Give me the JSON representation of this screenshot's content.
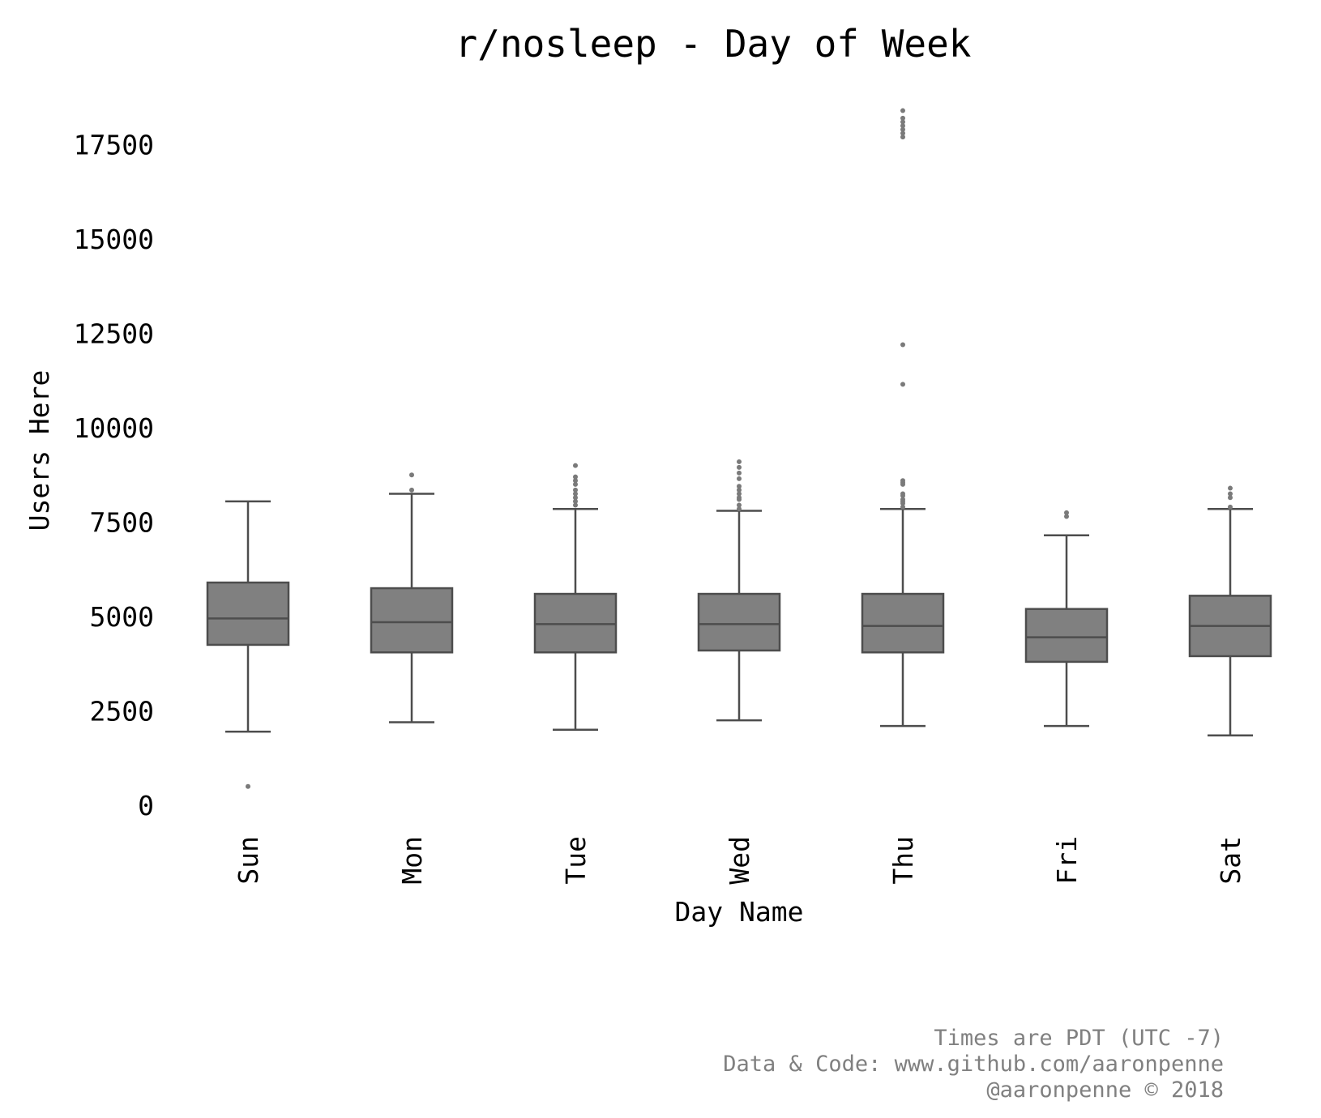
{
  "chart_data": {
    "type": "box",
    "title": "r/nosleep - Day of Week",
    "xlabel": "Day Name",
    "ylabel": "Users Here",
    "ylim": [
      0,
      18500
    ],
    "yticks": [
      0,
      2500,
      5000,
      7500,
      10000,
      12500,
      15000,
      17500
    ],
    "grid": false,
    "box_color": "#808080",
    "line_color": "#4d4d4d",
    "categories": [
      "Sun",
      "Mon",
      "Tue",
      "Wed",
      "Thu",
      "Fri",
      "Sat"
    ],
    "boxes": [
      {
        "day": "Sun",
        "whisker_low": 1950,
        "q1": 4250,
        "median": 4950,
        "q3": 5900,
        "whisker_high": 8050,
        "outliers": [
          500
        ]
      },
      {
        "day": "Mon",
        "whisker_low": 2200,
        "q1": 4050,
        "median": 4850,
        "q3": 5750,
        "whisker_high": 8250,
        "outliers": [
          8350,
          8750
        ]
      },
      {
        "day": "Tue",
        "whisker_low": 2000,
        "q1": 4050,
        "median": 4800,
        "q3": 5600,
        "whisker_high": 7850,
        "outliers": [
          7950,
          8050,
          8150,
          8250,
          8350,
          8500,
          8600,
          8700,
          9000
        ]
      },
      {
        "day": "Wed",
        "whisker_low": 2250,
        "q1": 4100,
        "median": 4800,
        "q3": 5600,
        "whisker_high": 7800,
        "outliers": [
          7850,
          7950,
          8100,
          8150,
          8250,
          8350,
          8450,
          8650,
          8800,
          8950,
          9100
        ]
      },
      {
        "day": "Thu",
        "whisker_low": 2100,
        "q1": 4050,
        "median": 4750,
        "q3": 5600,
        "whisker_high": 7850,
        "outliers": [
          7900,
          8000,
          8050,
          8100,
          8200,
          8250,
          8500,
          8550,
          8600,
          11150,
          12200,
          17700,
          17800,
          17900,
          18000,
          18100,
          18200,
          18400
        ]
      },
      {
        "day": "Fri",
        "whisker_low": 2100,
        "q1": 3800,
        "median": 4450,
        "q3": 5200,
        "whisker_high": 7150,
        "outliers": [
          7650,
          7750
        ]
      },
      {
        "day": "Sat",
        "whisker_low": 1850,
        "q1": 3950,
        "median": 4750,
        "q3": 5550,
        "whisker_high": 7850,
        "outliers": [
          7900,
          8150,
          8250,
          8400
        ]
      }
    ]
  },
  "footer": {
    "line1": "Times are PDT (UTC -7)",
    "line2": "Data & Code: www.github.com/aaronpenne",
    "line3": "@aaronpenne © 2018"
  }
}
